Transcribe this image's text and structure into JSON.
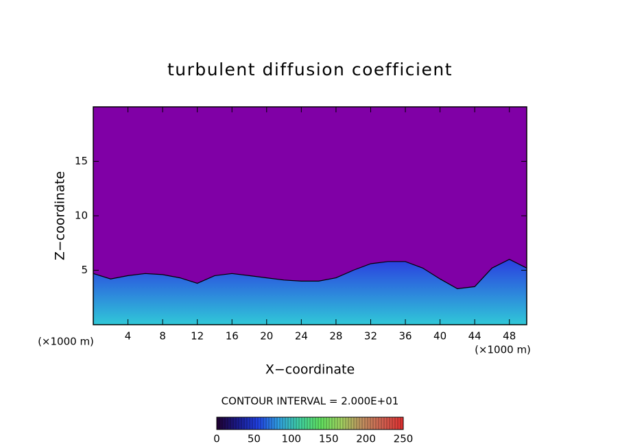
{
  "chart_data": {
    "type": "contour",
    "title": "turbulent diffusion coefficient",
    "x_label": "X−coordinate",
    "y_label": "Z−coordinate",
    "x_unit": "(×1000 m)",
    "y_unit": "(×1000 m)",
    "contour_interval": "CONTOUR INTERVAL = 2.000E+01",
    "x": [
      0,
      2,
      4,
      6,
      8,
      10,
      12,
      14,
      16,
      18,
      20,
      22,
      24,
      26,
      28,
      30,
      32,
      34,
      36,
      38,
      40,
      42,
      44,
      46,
      48,
      50
    ],
    "values": [
      4.7,
      4.2,
      4.5,
      4.7,
      4.6,
      4.3,
      3.8,
      4.5,
      4.7,
      4.5,
      4.3,
      4.1,
      4.0,
      4.0,
      4.3,
      5.0,
      5.6,
      5.8,
      5.8,
      5.2,
      4.2,
      3.3,
      3.5,
      5.2,
      6.0,
      5.2
    ],
    "xlim": [
      0,
      50
    ],
    "ylim": [
      0,
      20
    ],
    "xticks": [
      4,
      8,
      12,
      16,
      20,
      24,
      28,
      32,
      36,
      40,
      44,
      48
    ],
    "yticks": [
      5,
      10,
      15
    ],
    "colorbar_lim": [
      0,
      250
    ],
    "colorbar_ticks": [
      0,
      50,
      100,
      150,
      200,
      250
    ],
    "colormap": [
      "#200030",
      "#1a1a8a",
      "#2040e0",
      "#30a0e0",
      "#40d0a0",
      "#60e060",
      "#a0d060",
      "#c09060",
      "#d06050",
      "#e03030"
    ],
    "background_color": "#8000a6",
    "field_color": "#2a3ee0",
    "field_edge_color": "#30c8d8"
  }
}
